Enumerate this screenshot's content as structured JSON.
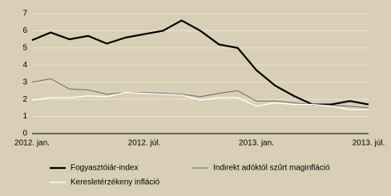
{
  "chart_data": {
    "type": "line",
    "categories": [
      "2012. jan.",
      null,
      null,
      null,
      null,
      null,
      "2012. júl.",
      null,
      null,
      null,
      null,
      null,
      "2013. jan.",
      null,
      null,
      null,
      null,
      null,
      "2013. júl."
    ],
    "series": [
      {
        "name": "Fogyasztóiár-index",
        "color": "#000000",
        "values": [
          5.45,
          5.9,
          5.5,
          5.7,
          5.25,
          5.6,
          5.8,
          6.0,
          6.6,
          6.0,
          5.2,
          5.0,
          3.7,
          2.8,
          2.2,
          1.7,
          1.7,
          1.9,
          1.7
        ]
      },
      {
        "name": "Indirekt adóktól szűrt maginfláció",
        "color": "#6b6b6b",
        "values": [
          3.0,
          3.2,
          2.6,
          2.55,
          2.3,
          2.4,
          2.4,
          2.35,
          2.3,
          2.15,
          2.35,
          2.5,
          1.9,
          1.9,
          1.8,
          1.7,
          1.65,
          1.6,
          1.5
        ]
      },
      {
        "name": "Keresletérzékeny infláció",
        "color": "#ffffff",
        "values": [
          1.95,
          2.1,
          2.1,
          2.2,
          2.15,
          2.4,
          2.35,
          2.3,
          2.25,
          1.95,
          2.1,
          2.1,
          1.6,
          1.8,
          1.7,
          1.7,
          1.6,
          1.4,
          1.4
        ]
      }
    ],
    "ylim": [
      0,
      7
    ],
    "yticks": [
      0,
      1,
      2,
      3,
      4,
      5,
      6,
      7
    ],
    "grid": true
  }
}
